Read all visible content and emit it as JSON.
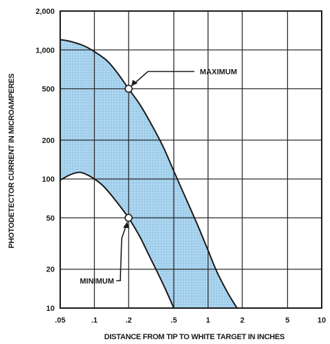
{
  "chart_data": {
    "type": "area",
    "xscale": "log",
    "yscale": "log",
    "xlim": [
      0.05,
      10
    ],
    "ylim": [
      10,
      2000
    ],
    "grid": true,
    "xlabel": "DISTANCE FROM TIP TO WHITE TARGET IN INCHES",
    "ylabel": "PHOTODETECTOR CURRENT IN MICROAMPERES",
    "x_ticks": [
      {
        "value": 0.05,
        "label": ".05"
      },
      {
        "value": 0.1,
        "label": ".1"
      },
      {
        "value": 0.2,
        "label": ".2"
      },
      {
        "value": 0.5,
        "label": ".5"
      },
      {
        "value": 1,
        "label": "1"
      },
      {
        "value": 2,
        "label": "2"
      },
      {
        "value": 5,
        "label": "5"
      },
      {
        "value": 10,
        "label": "10"
      }
    ],
    "y_ticks": [
      {
        "value": 10,
        "label": "10"
      },
      {
        "value": 20,
        "label": "20"
      },
      {
        "value": 50,
        "label": "50"
      },
      {
        "value": 100,
        "label": "100"
      },
      {
        "value": 200,
        "label": "200"
      },
      {
        "value": 500,
        "label": "500"
      },
      {
        "value": 1000,
        "label": "1,000"
      },
      {
        "value": 2000,
        "label": "2,000"
      }
    ],
    "series": [
      {
        "name": "MAXIMUM",
        "x": [
          0.05,
          0.06,
          0.08,
          0.1,
          0.13,
          0.16,
          0.2,
          0.25,
          0.3,
          0.4,
          0.5,
          0.6,
          0.8,
          1.0,
          1.2,
          1.5,
          1.8
        ],
        "y": [
          1200,
          1170,
          1080,
          970,
          820,
          660,
          500,
          380,
          290,
          180,
          115,
          80,
          45,
          28,
          19,
          13,
          10
        ]
      },
      {
        "name": "MINIMUM",
        "x": [
          0.05,
          0.06,
          0.07,
          0.08,
          0.1,
          0.12,
          0.15,
          0.2,
          0.25,
          0.3,
          0.4,
          0.5
        ],
        "y": [
          98,
          107,
          112,
          111,
          100,
          88,
          70,
          50,
          36,
          26,
          15.5,
          10
        ]
      }
    ],
    "fill": "#a9d3ee",
    "annotations": [
      {
        "text": "MAXIMUM",
        "x": 0.2,
        "y": 500
      },
      {
        "text": "MINIMUM",
        "x": 0.2,
        "y": 50
      }
    ]
  }
}
